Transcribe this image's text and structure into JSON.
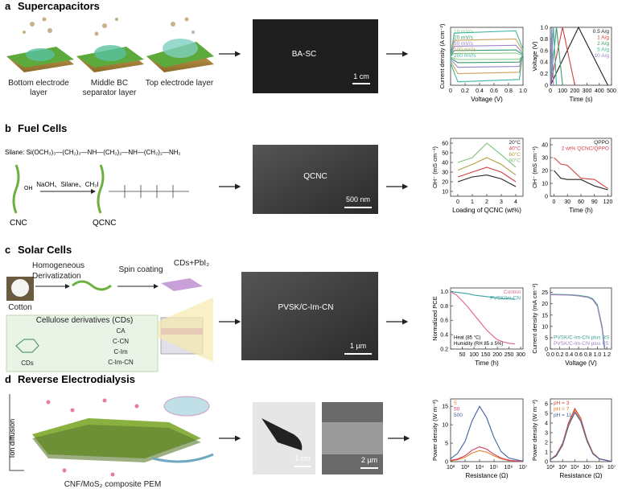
{
  "panels": {
    "a": {
      "letter": "a",
      "title": "Supercapacitors",
      "layers": [
        "Bottom electrode layer",
        "Middle BC separator layer",
        "Top electrode layer"
      ],
      "photo_label": "BA-SC",
      "scale_bar": "1 cm"
    },
    "b": {
      "letter": "b",
      "title": "Fuel Cells",
      "silane": "Silane: Si(OCH₃)₃—(CH₂)₃—NH—(CH₂)₂—NH—(CH₂)₂—NH₂",
      "reagents": "NaOH、Silane、CH₃I",
      "start": "CNC",
      "product": "QCNC",
      "hydroxyl": "OH",
      "photo_label": "QCNC",
      "scale_bar": "500 nm"
    },
    "c": {
      "letter": "c",
      "title": "Solar Cells",
      "steps": [
        "Homogeneous",
        "Derivatization",
        "Spin coating",
        "CDs+PbI₂"
      ],
      "cotton": "Cotton",
      "box_title": "Cellulose derivatives (CDs)",
      "derivatives": [
        "CA",
        "C-CN",
        "C-Im",
        "C-Im-CN"
      ],
      "cds": "CDs",
      "photo_label": "PVSK/C-Im-CN",
      "scale_bar": "1 µm"
    },
    "d": {
      "letter": "d",
      "title": "Reverse Electrodialysis",
      "ion": "Ion diffusion",
      "membrane": "CNF/MoS₂ composite PEM",
      "scale_bars": [
        "1 cm",
        "2 µm"
      ]
    }
  },
  "chart_data": [
    {
      "type": "line",
      "xlabel": "Voltage (V)",
      "ylabel": "Current density (A cm⁻²)",
      "xlim": [
        0,
        1
      ],
      "xticks": [
        0,
        0.2,
        0.4,
        0.6,
        0.8,
        {
          "value": 1,
          "label": "1.0"
        }
      ],
      "ylim": [
        -1,
        1
      ],
      "legend": "upper left",
      "series": [
        {
          "name": "10 mV/s",
          "color": "#8fc98a",
          "x": [
            0,
            0.05,
            0.9,
            1,
            0.95,
            0.1,
            0,
            0
          ],
          "values": [
            0,
            0.1,
            0.11,
            0.03,
            -0.1,
            -0.11,
            -0.03,
            0
          ]
        },
        {
          "name": "20 mV/s",
          "color": "#3d9a68",
          "x": [
            0,
            0.05,
            0.9,
            1,
            0.95,
            0.1,
            0,
            0
          ],
          "values": [
            0,
            0.2,
            0.22,
            0.06,
            -0.2,
            -0.22,
            -0.06,
            0
          ]
        },
        {
          "name": "50 mV/s",
          "color": "#9a80cc",
          "x": [
            0,
            0.05,
            0.9,
            1,
            0.95,
            0.1,
            0,
            0
          ],
          "values": [
            0,
            0.35,
            0.38,
            0.1,
            -0.35,
            -0.38,
            -0.1,
            0
          ]
        },
        {
          "name": "100 mV/s",
          "color": "#c8a45a",
          "x": [
            0,
            0.05,
            0.9,
            1,
            0.95,
            0.1,
            0,
            0
          ],
          "values": [
            0,
            0.55,
            0.6,
            0.16,
            -0.55,
            -0.6,
            -0.16,
            0
          ]
        },
        {
          "name": "200 mV/s",
          "color": "#3fb3a0",
          "x": [
            0,
            0.05,
            0.9,
            1,
            0.95,
            0.1,
            0,
            0
          ],
          "values": [
            0,
            0.8,
            0.88,
            0.24,
            -0.8,
            -0.88,
            -0.24,
            0
          ]
        }
      ]
    },
    {
      "type": "line",
      "xlabel": "Time (s)",
      "ylabel": "Voltage (V)",
      "xlim": [
        0,
        500
      ],
      "xticks": [
        0,
        100,
        200,
        300,
        400,
        500
      ],
      "ylim": [
        0,
        1
      ],
      "yticks": [
        0,
        0.2,
        0.4,
        0.6,
        0.8,
        {
          "value": 1,
          "label": "1.0"
        }
      ],
      "legend": "upper right",
      "series": [
        {
          "name": "0.5 A/g",
          "color": "#222222",
          "x": [
            0,
            230,
            470
          ],
          "values": [
            0,
            1,
            0
          ]
        },
        {
          "name": "1 A/g",
          "color": "#d04040",
          "x": [
            0,
            100,
            200
          ],
          "values": [
            0,
            1,
            0
          ]
        },
        {
          "name": "2 A/g",
          "color": "#3d9a68",
          "x": [
            0,
            50,
            100
          ],
          "values": [
            0,
            1,
            0
          ]
        },
        {
          "name": "5 A/g",
          "color": "#3fb3a0",
          "x": [
            0,
            25,
            50
          ],
          "values": [
            0,
            1,
            0
          ]
        },
        {
          "name": "10 A/g",
          "color": "#9a80cc",
          "x": [
            0,
            12,
            25
          ],
          "values": [
            0,
            1,
            0
          ]
        }
      ]
    },
    {
      "type": "line",
      "xlabel": "Loading of QCNC (wt%)",
      "ylabel": "OH⁻ (mS cm⁻¹)",
      "xlim": [
        -0.5,
        4.5
      ],
      "xticks": [
        0,
        1,
        2,
        3,
        4
      ],
      "ylim": [
        5,
        65
      ],
      "yticks": [
        10,
        20,
        30,
        40,
        50,
        60
      ],
      "legend": "upper right",
      "x": [
        0,
        1,
        2,
        3,
        4
      ],
      "series": [
        {
          "name": "20°C",
          "color": "#222222",
          "values": [
            20,
            25,
            27,
            23,
            15
          ]
        },
        {
          "name": "40°C",
          "color": "#d04040",
          "values": [
            25,
            30,
            35,
            30,
            20
          ]
        },
        {
          "name": "60°C",
          "color": "#b0a040",
          "values": [
            32,
            38,
            45,
            38,
            27
          ]
        },
        {
          "name": "80°C",
          "color": "#7cc07c",
          "values": [
            40,
            45,
            60,
            48,
            35
          ]
        }
      ]
    },
    {
      "type": "line",
      "xlabel": "Time (h)",
      "ylabel": "OH⁻ (mS cm⁻¹)",
      "xlim": [
        -8,
        128
      ],
      "xticks": [
        0,
        30,
        60,
        90,
        120
      ],
      "ylim": [
        0,
        45
      ],
      "yticks": [
        0,
        10,
        20,
        30,
        40
      ],
      "legend": "upper right",
      "x": [
        0,
        15,
        30,
        60,
        90,
        120
      ],
      "series": [
        {
          "name": "QPPO",
          "color": "#222222",
          "values": [
            20,
            14,
            13,
            13,
            8,
            5
          ]
        },
        {
          "name": "2 wt% QCNC/QPPO",
          "color": "#d04040",
          "values": [
            30,
            25,
            24,
            14,
            13,
            6
          ]
        }
      ]
    },
    {
      "type": "line",
      "xlabel": "Time (h)",
      "ylabel": "Normalized PCE",
      "xlim": [
        0,
        310
      ],
      "xticks": [
        50,
        100,
        150,
        200,
        250,
        300
      ],
      "ylim": [
        0.2,
        1.05
      ],
      "yticks": [
        0.2,
        0.4,
        0.6,
        0.8,
        {
          "value": 1,
          "label": "1.0"
        }
      ],
      "legend": "upper right",
      "annotations": [
        "Heat (85 °C)",
        "Humidity (RH 85 ± 5%)"
      ],
      "x": [
        0,
        25,
        50,
        75,
        100,
        125,
        150,
        175,
        200,
        225,
        250,
        275
      ],
      "series": [
        {
          "name": "Control",
          "color": "#e06090",
          "values": [
            1,
            0.95,
            0.87,
            0.78,
            0.68,
            0.58,
            0.48,
            0.4,
            0.33,
            0.3,
            0.28,
            0.27
          ]
        },
        {
          "name": "PVSK/Im-CN",
          "color": "#40a0a0",
          "values": [
            1,
            0.99,
            0.98,
            0.97,
            0.95,
            0.94,
            0.93,
            0.92,
            0.91,
            0.9,
            0.9,
            0.89
          ]
        }
      ]
    },
    {
      "type": "line",
      "xlabel": "Voltage (V)",
      "ylabel": "Current density (mA cm⁻²)",
      "xlim": [
        0,
        1.3
      ],
      "xticks": [
        {
          "value": 0,
          "label": "0.0"
        },
        0.2,
        0.4,
        0.6,
        0.8,
        {
          "value": 1,
          "label": "1.0"
        },
        1.2
      ],
      "ylim": [
        0,
        27
      ],
      "yticks": [
        0,
        5,
        10,
        15,
        20,
        25
      ],
      "legend": "lower left",
      "series": [
        {
          "name": "PVSK/C-Im-CN plus RS",
          "color": "#40a090",
          "x": [
            0,
            0.2,
            0.4,
            0.6,
            0.8,
            0.9,
            1.0,
            1.1,
            1.16
          ],
          "values": [
            24.2,
            24.1,
            24,
            23.7,
            23.1,
            22.2,
            19.5,
            10,
            0
          ]
        },
        {
          "name": "PVSK/C-Im-CN plus FS",
          "color": "#a080c0",
          "x": [
            0,
            0.2,
            0.4,
            0.6,
            0.8,
            0.9,
            1.0,
            1.1,
            1.15
          ],
          "values": [
            24,
            23.9,
            23.8,
            23.5,
            22.8,
            21.8,
            18.8,
            9,
            0
          ]
        }
      ]
    },
    {
      "type": "line",
      "xlabel": "Resistance (Ω)",
      "ylabel": "Power density (W m⁻²)",
      "xscale": "log",
      "xlim": [
        100,
        10000000
      ],
      "xticks": [
        {
          "value": 100,
          "label": "10²"
        },
        {
          "value": 1000,
          "label": "10³"
        },
        {
          "value": 10000,
          "label": "10⁴"
        },
        {
          "value": 100000,
          "label": "10⁵"
        },
        {
          "value": 1000000,
          "label": "10⁶"
        },
        {
          "value": 10000000,
          "label": "10⁷"
        }
      ],
      "ylim": [
        0,
        17
      ],
      "yticks": [
        0,
        5,
        10,
        15
      ],
      "legend": "upper left",
      "x": [
        100,
        300,
        1000,
        3000,
        10000,
        30000,
        100000,
        300000,
        1000000,
        10000000
      ],
      "series": [
        {
          "name": "5",
          "color": "#e08030",
          "values": [
            0.2,
            0.5,
            1.2,
            2.3,
            3,
            2.6,
            1.6,
            0.8,
            0.3,
            0.05
          ]
        },
        {
          "name": "50",
          "color": "#d04060",
          "values": [
            0.3,
            0.7,
            1.6,
            3.1,
            4,
            3.4,
            2,
            1,
            0.4,
            0.05
          ]
        },
        {
          "name": "500",
          "color": "#4060a0",
          "values": [
            0.8,
            2.2,
            5.5,
            11,
            15,
            12,
            6.5,
            2.8,
            1,
            0.1
          ]
        }
      ]
    },
    {
      "type": "line",
      "xlabel": "Resistance (Ω)",
      "ylabel": "Power density (W m⁻²)",
      "xscale": "log",
      "xlim": [
        100,
        10000000
      ],
      "xticks": [
        {
          "value": 100,
          "label": "10²"
        },
        {
          "value": 1000,
          "label": "10³"
        },
        {
          "value": 10000,
          "label": "10⁴"
        },
        {
          "value": 100000,
          "label": "10⁵"
        },
        {
          "value": 1000000,
          "label": "10⁶"
        },
        {
          "value": 10000000,
          "label": "10⁷"
        }
      ],
      "ylim": [
        0,
        6.5
      ],
      "yticks": [
        0,
        1,
        2,
        3,
        4,
        5,
        6
      ],
      "legend": "upper left",
      "x": [
        100,
        300,
        1000,
        3000,
        10000,
        30000,
        100000,
        300000,
        1000000,
        10000000
      ],
      "series": [
        {
          "name": "pH = 3",
          "color": "#d04040",
          "values": [
            0.2,
            0.7,
            1.9,
            4,
            5.5,
            4.5,
            2.3,
            0.9,
            0.3,
            0.02
          ]
        },
        {
          "name": "pH = 7",
          "color": "#e08030",
          "values": [
            0.2,
            0.6,
            1.8,
            3.8,
            5.3,
            4.3,
            2.2,
            0.85,
            0.3,
            0.02
          ]
        },
        {
          "name": "pH = 11",
          "color": "#4060a0",
          "values": [
            0.2,
            0.6,
            1.7,
            3.7,
            5.1,
            4.2,
            2.1,
            0.8,
            0.28,
            0.02
          ]
        }
      ]
    }
  ]
}
